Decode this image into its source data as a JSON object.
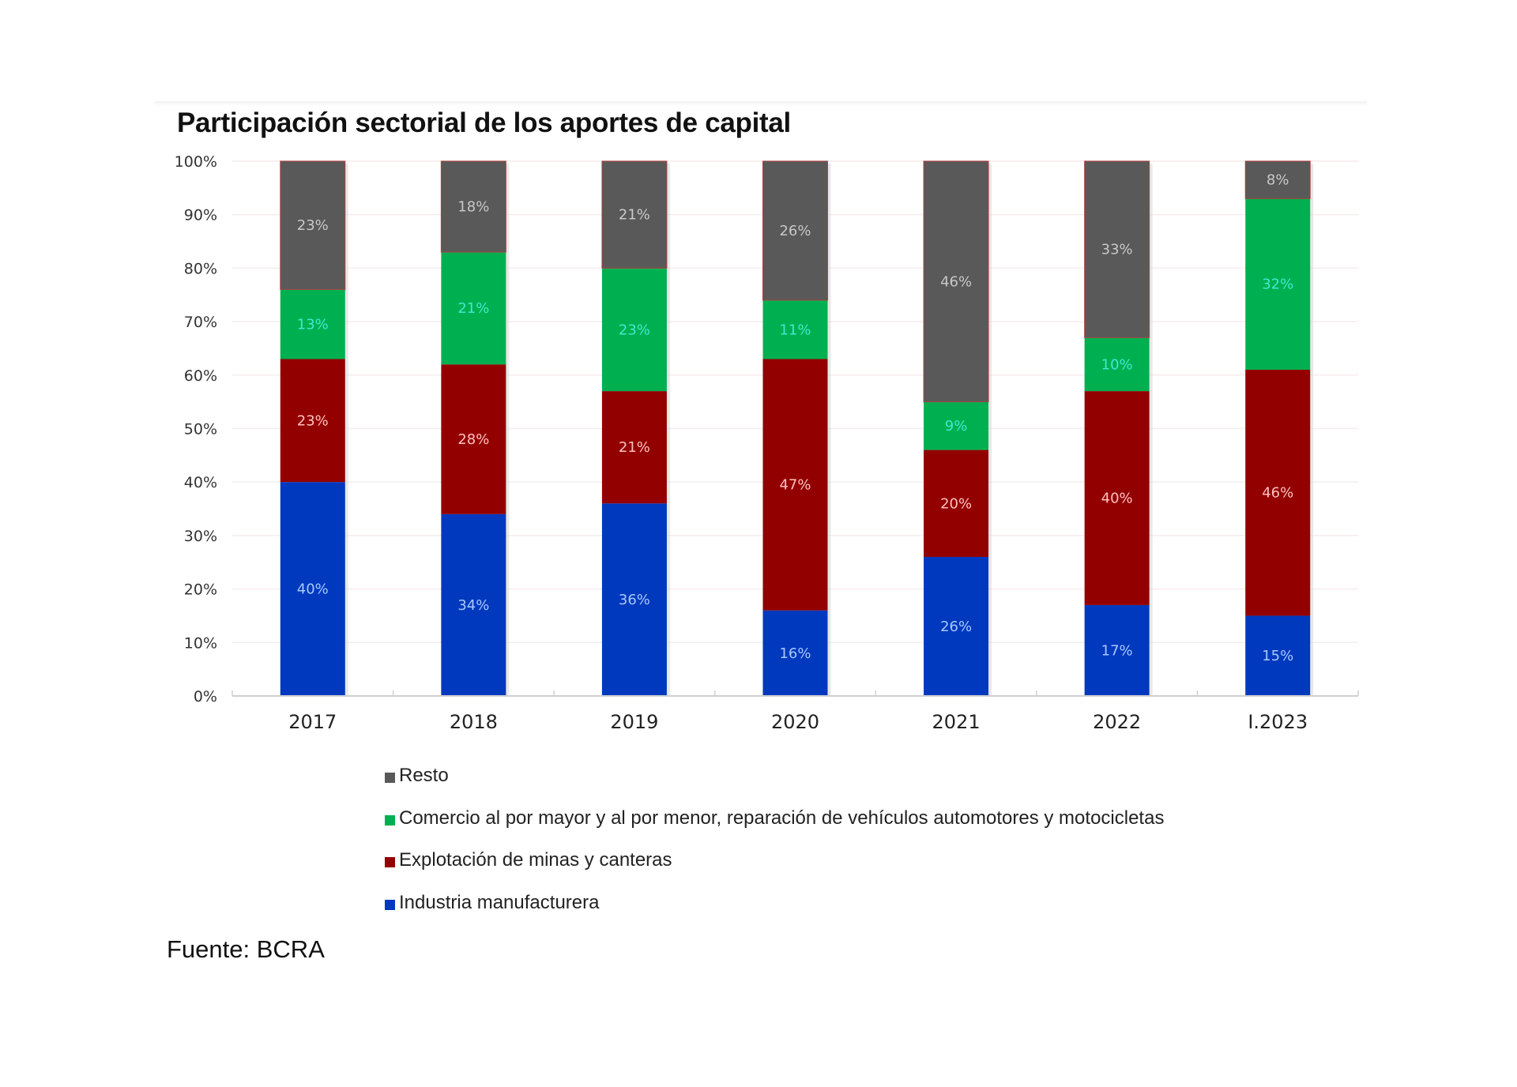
{
  "chart_data": {
    "type": "bar",
    "stacked": true,
    "title": "Participación sectorial de los aportes de capital",
    "xlabel": "",
    "ylabel": "",
    "ylim": [
      0,
      100
    ],
    "yticks": [
      "0%",
      "10%",
      "20%",
      "30%",
      "40%",
      "50%",
      "60%",
      "70%",
      "80%",
      "90%",
      "100%"
    ],
    "grid": true,
    "legend_position": "bottom",
    "categories": [
      "2017",
      "2018",
      "2019",
      "2020",
      "2021",
      "2022",
      "I.2023"
    ],
    "series": [
      {
        "name": "Industria manufacturera",
        "color": "#0039bd",
        "label_color": "#a9c8ff",
        "values": [
          40,
          34,
          36,
          16,
          26,
          17,
          15
        ]
      },
      {
        "name": "Explotación de minas y canteras",
        "color": "#930000",
        "label_color": "#ffc0c0",
        "values": [
          23,
          28,
          21,
          47,
          20,
          40,
          46
        ]
      },
      {
        "name": "Comercio al por mayor y al por menor, reparación de vehículos automotores y motocicletas",
        "color": "#00b050",
        "label_color": "#40e8d0",
        "values": [
          13,
          21,
          23,
          11,
          9,
          10,
          32
        ]
      },
      {
        "name": "Resto",
        "color": "#595959",
        "label_color": "#c8c8c8",
        "values": [
          23,
          18,
          21,
          26,
          46,
          33,
          8
        ]
      }
    ],
    "legend_order": [
      "Resto",
      "Comercio al por mayor y al por menor, reparación de vehículos automotores y motocicletas",
      "Explotación de minas y canteras",
      "Industria manufacturera"
    ]
  },
  "legend": [
    {
      "label": "Resto",
      "color": "#595959"
    },
    {
      "label": "Comercio al por mayor y al por menor, reparación de vehículos automotores y motocicletas",
      "color": "#00b050"
    },
    {
      "label": "Explotación de minas y canteras",
      "color": "#930000"
    },
    {
      "label": "Industria manufacturera",
      "color": "#0039bd"
    }
  ],
  "source": "Fuente: BCRA"
}
